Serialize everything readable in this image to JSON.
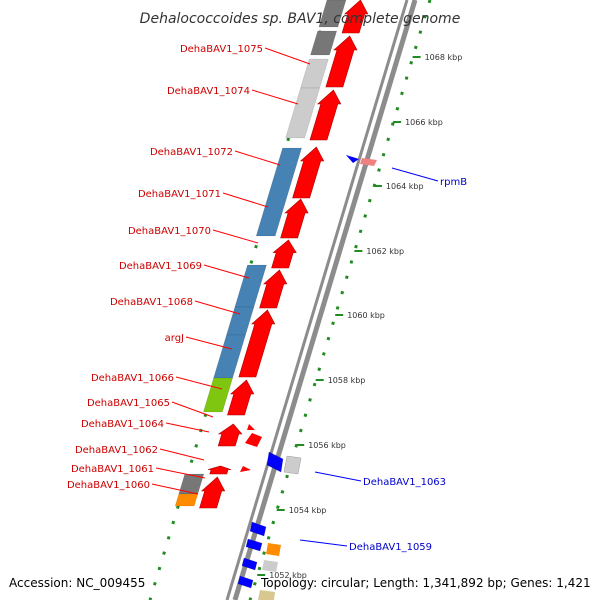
{
  "title": "Dehalococcoides sp. BAV1, complete genome",
  "footer": {
    "accession": "Accession: NC_009455",
    "topology": "Topology: circular; Length: 1,341,892 bp; Genes: 1,421"
  },
  "colors": {
    "forward": "#ff0000",
    "reverse": "#0000ff",
    "dark_gray": "#777777",
    "light_gray": "#cccccc",
    "steel_blue": "#4682b4",
    "green": "#7ec60f",
    "orange": "#ff8c00",
    "label_forward": "#cc0000",
    "label_reverse": "#0000cc",
    "tick": "#228b22"
  },
  "kbp_ticks": [
    "1068 kbp",
    "1066 kbp",
    "1064 kbp",
    "1062 kbp",
    "1060 kbp",
    "1058 kbp",
    "1056 kbp",
    "1054 kbp",
    "1052 kbp"
  ],
  "forward_labels": [
    "DehaBAV1_1075",
    "DehaBAV1_1074",
    "DehaBAV1_1072",
    "DehaBAV1_1071",
    "DehaBAV1_1070",
    "DehaBAV1_1069",
    "DehaBAV1_1068",
    "argJ",
    "DehaBAV1_1066",
    "DehaBAV1_1065",
    "DehaBAV1_1064",
    "DehaBAV1_1062",
    "DehaBAV1_1061",
    "DehaBAV1_1060"
  ],
  "reverse_labels": [
    "rpmB",
    "DehaBAV1_1063",
    "DehaBAV1_1059"
  ]
}
